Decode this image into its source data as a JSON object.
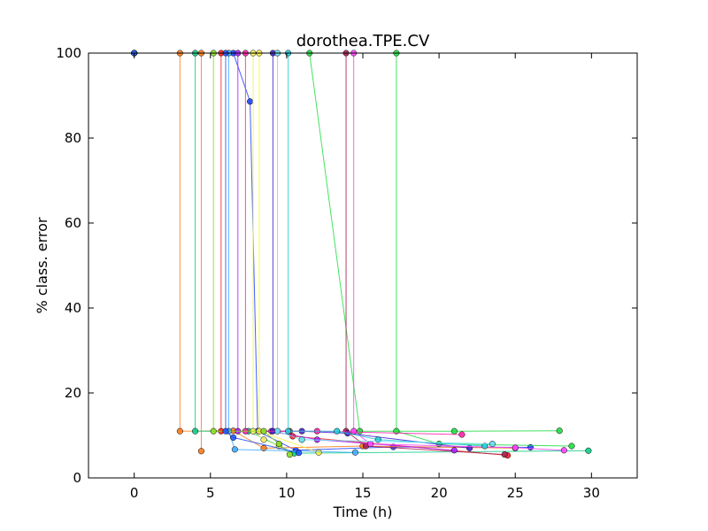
{
  "chart_data": {
    "type": "line",
    "title": "dorothea.TPE.CV",
    "xlabel": "Time (h)",
    "ylabel": "% class. error",
    "xlim": [
      -3,
      33
    ],
    "ylim": [
      0,
      100
    ],
    "xticks": [
      0,
      5,
      10,
      15,
      20,
      25,
      30
    ],
    "yticks": [
      0,
      20,
      40,
      60,
      80,
      100
    ],
    "grid": false,
    "legend": "none",
    "series": [
      {
        "color": "#2244ff",
        "points": [
          [
            0,
            100
          ],
          [
            6.5,
            100
          ],
          [
            7.6,
            88.6
          ],
          [
            8.1,
            11
          ],
          [
            10.6,
            6.5
          ],
          [
            17,
            7.3
          ],
          [
            26,
            7.2
          ]
        ]
      },
      {
        "color": "#ff7a1a",
        "points": [
          [
            0,
            100
          ],
          [
            3,
            100
          ],
          [
            3,
            11
          ],
          [
            6.5,
            11.1
          ],
          [
            8.5,
            7
          ],
          [
            15,
            7.5
          ],
          [
            25,
            7
          ]
        ]
      },
      {
        "color": "#ff7a1a",
        "points": [
          [
            0,
            100
          ],
          [
            4.4,
            100
          ],
          [
            4.4,
            6.3
          ]
        ]
      },
      {
        "color": "#22dd44",
        "points": [
          [
            0,
            100
          ],
          [
            11.5,
            100
          ],
          [
            14.8,
            11
          ],
          [
            21,
            11
          ],
          [
            27.9,
            11.1
          ]
        ]
      },
      {
        "color": "#22dd44",
        "points": [
          [
            0,
            100
          ],
          [
            17.2,
            100
          ],
          [
            17.2,
            11
          ],
          [
            20,
            8
          ],
          [
            28.7,
            7.5
          ]
        ]
      },
      {
        "color": "#11cc88",
        "points": [
          [
            0,
            100
          ],
          [
            4,
            100
          ],
          [
            4,
            11
          ],
          [
            7.5,
            11
          ],
          [
            10.5,
            5.8
          ],
          [
            29.8,
            6.4
          ]
        ]
      },
      {
        "color": "#ff2222",
        "points": [
          [
            0,
            100
          ],
          [
            5.7,
            100
          ],
          [
            5.7,
            11
          ],
          [
            10.2,
            11
          ],
          [
            10.4,
            9.8
          ],
          [
            24.5,
            5.3
          ]
        ]
      },
      {
        "color": "#aa2255",
        "points": [
          [
            0,
            100
          ],
          [
            13.9,
            100
          ],
          [
            13.9,
            11
          ],
          [
            15.2,
            7.5
          ],
          [
            24.3,
            5.5
          ]
        ]
      },
      {
        "color": "#aa22ff",
        "points": [
          [
            0,
            100
          ],
          [
            6.8,
            100
          ],
          [
            6.8,
            11
          ],
          [
            9,
            11
          ],
          [
            12,
            9
          ],
          [
            21,
            6.5
          ]
        ]
      },
      {
        "color": "#4422cc",
        "points": [
          [
            0,
            100
          ],
          [
            9.1,
            100
          ],
          [
            9.1,
            11
          ],
          [
            11,
            11
          ],
          [
            14,
            10.5
          ],
          [
            22,
            7
          ]
        ]
      },
      {
        "color": "#ff44ff",
        "points": [
          [
            0,
            100
          ],
          [
            14.4,
            100
          ],
          [
            14.4,
            11
          ],
          [
            15.5,
            8
          ],
          [
            25,
            7.1
          ],
          [
            28.2,
            6.5
          ]
        ]
      },
      {
        "color": "#ff22aa",
        "points": [
          [
            0,
            100
          ],
          [
            7.3,
            100
          ],
          [
            7.3,
            11
          ],
          [
            12,
            11
          ],
          [
            21.5,
            10.2
          ]
        ]
      },
      {
        "color": "#ffee44",
        "points": [
          [
            0,
            100
          ],
          [
            8.2,
            100
          ],
          [
            8.2,
            11
          ],
          [
            12.1,
            6
          ]
        ]
      },
      {
        "color": "#eeee66",
        "points": [
          [
            0,
            100
          ],
          [
            7.8,
            100
          ],
          [
            7.8,
            11
          ],
          [
            8.5,
            9
          ],
          [
            9.5,
            7.5
          ]
        ]
      },
      {
        "color": "#22ccdd",
        "points": [
          [
            0,
            100
          ],
          [
            10.1,
            100
          ],
          [
            10.1,
            11
          ],
          [
            13.3,
            11
          ],
          [
            16,
            9
          ],
          [
            23,
            7.5
          ]
        ]
      },
      {
        "color": "#44aaff",
        "points": [
          [
            0,
            100
          ],
          [
            6.2,
            100
          ],
          [
            6.2,
            11
          ],
          [
            6.6,
            6.7
          ],
          [
            14.5,
            6
          ]
        ]
      },
      {
        "color": "#66ddee",
        "points": [
          [
            0,
            100
          ],
          [
            9.4,
            100
          ],
          [
            9.4,
            11
          ],
          [
            11,
            9
          ],
          [
            23.5,
            8
          ]
        ]
      },
      {
        "color": "#88dd22",
        "points": [
          [
            0,
            100
          ],
          [
            5.2,
            100
          ],
          [
            5.2,
            11
          ],
          [
            8.5,
            11
          ],
          [
            9.5,
            8
          ],
          [
            10.2,
            5.5
          ]
        ]
      },
      {
        "color": "#2255ff",
        "points": [
          [
            0,
            100
          ],
          [
            6,
            100
          ],
          [
            6,
            11
          ],
          [
            6.5,
            9.5
          ],
          [
            10.8,
            5.9
          ]
        ]
      }
    ]
  }
}
